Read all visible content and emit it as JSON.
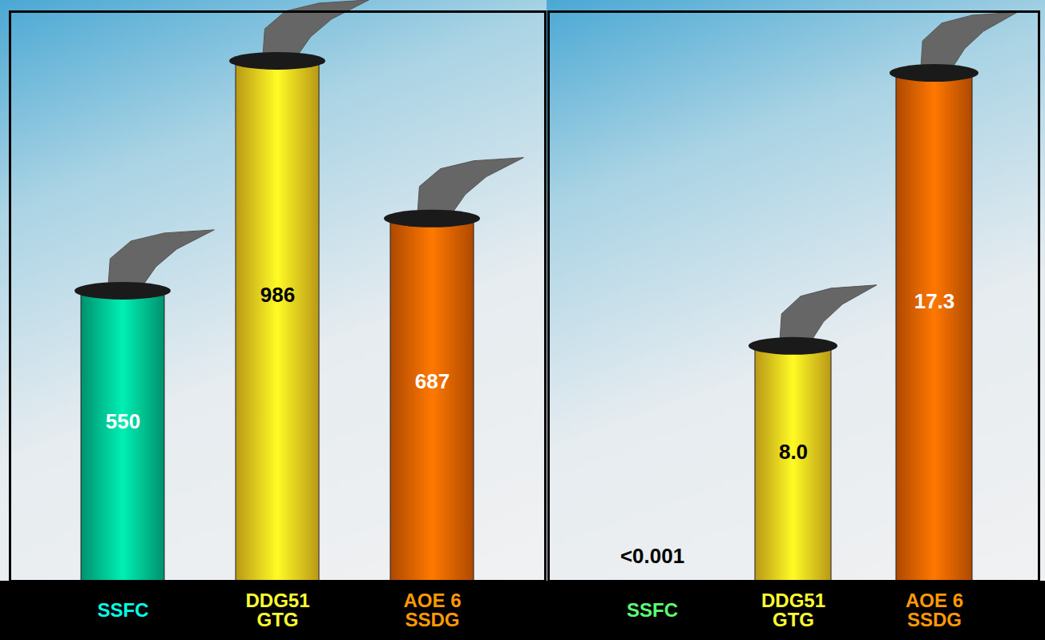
{
  "chart_data": [
    {
      "type": "bar",
      "categories": [
        "SSFC",
        "DDG51 GTG",
        "AOE 6 SSDG"
      ],
      "values": [
        550,
        986,
        687
      ],
      "colors": [
        "#00c896",
        "#ffd21f",
        "#f06400"
      ],
      "ylim": [
        0,
        1080
      ],
      "data_labels": true,
      "tick_labels": false
    },
    {
      "type": "bar",
      "categories": [
        "SSFC",
        "DDG51 GTG",
        "AOE 6 SSDG"
      ],
      "values": [
        0.001,
        8.0,
        17.3
      ],
      "value_labels": [
        "<0.001",
        "8.0",
        "17.3"
      ],
      "colors": [
        "#3cb84a",
        "#ffd21f",
        "#f06400"
      ],
      "ylim": [
        0,
        19.4
      ],
      "data_labels": true,
      "tick_labels": false
    }
  ]
}
